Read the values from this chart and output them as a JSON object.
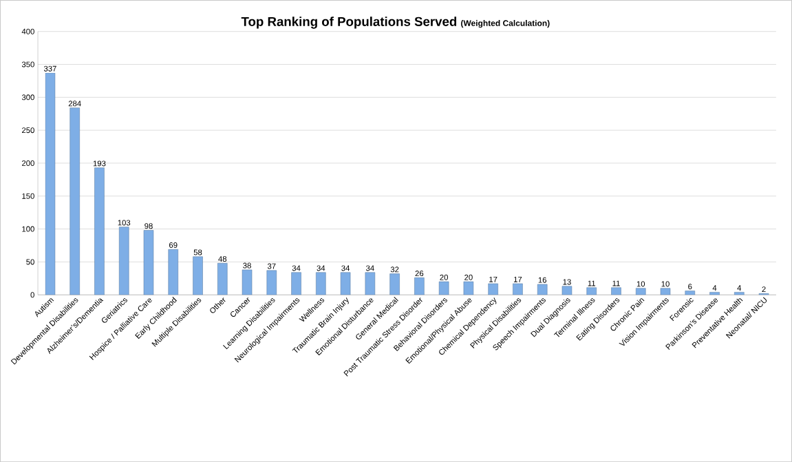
{
  "chart_data": {
    "type": "bar",
    "title": "Top Ranking of Populations Served",
    "subtitle": "(Weighted Calculation)",
    "categories": [
      "Autism",
      "Developmental Disabilities",
      "Alzheimer’s/Dementia",
      "Geriatrics",
      "Hospice / Palliative Care",
      "Early Childhood",
      "Multiple Disabilities",
      "Other",
      "Cancer",
      "Learning Disabilities",
      "Neurological Impairments",
      "Wellness",
      "Traumatic Brain Injury",
      "Emotional Disturbance",
      "General Medical",
      "Post Traumatic Stress Disorder",
      "Behavioral Disorders",
      "Emotional/Physical Abuse",
      "Chemical Dependency",
      "Physical Disabilities",
      "Speech Impairments",
      "Dual Diagnosis",
      "Terminal Illness",
      "Eating Disorders",
      "Chronic Pain",
      "Vision Impairments",
      "Forensic",
      "Parkinson’s Disease",
      "Preventative Health",
      "Neonatal/ NICU"
    ],
    "values": [
      337,
      284,
      193,
      103,
      98,
      69,
      58,
      48,
      38,
      37,
      34,
      34,
      34,
      34,
      32,
      26,
      20,
      20,
      17,
      17,
      16,
      13,
      11,
      11,
      10,
      10,
      6,
      4,
      4,
      2
    ],
    "color": "#7eaee6",
    "data_labels": true,
    "grid": "y",
    "ylim": [
      0,
      400
    ],
    "yticks": [
      0,
      50,
      100,
      150,
      200,
      250,
      300,
      350,
      400
    ]
  }
}
